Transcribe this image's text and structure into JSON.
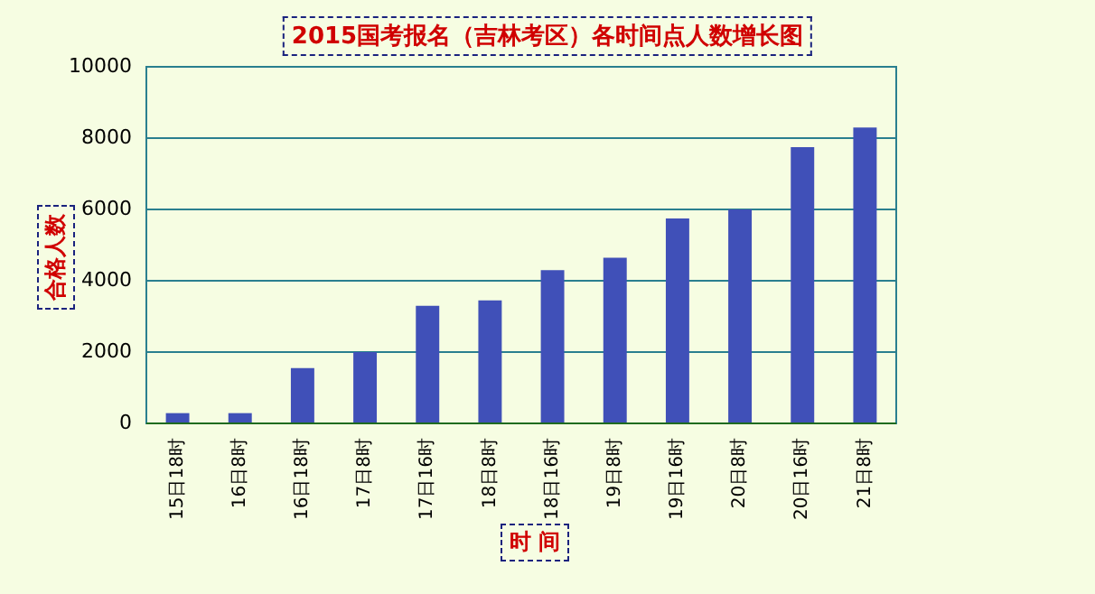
{
  "chart_data": {
    "type": "bar",
    "title": "2015国考报名（吉林考区）各时间点人数增长图",
    "xlabel": "时 间",
    "ylabel": "合格人数",
    "categories": [
      "15日18时",
      "16日8时",
      "16日18时",
      "17日8时",
      "17日16时",
      "18日8时",
      "18日16时",
      "19日8时",
      "19日16时",
      "20日8时",
      "20日16时",
      "21日8时"
    ],
    "values": [
      290,
      290,
      1550,
      2000,
      3300,
      3450,
      4300,
      4650,
      5750,
      6000,
      7750,
      8300
    ],
    "color": "#4050b8",
    "ylim": [
      0,
      10000
    ],
    "yticks": [
      0,
      2000,
      4000,
      6000,
      8000,
      10000
    ],
    "grid": "y",
    "legend": false
  }
}
